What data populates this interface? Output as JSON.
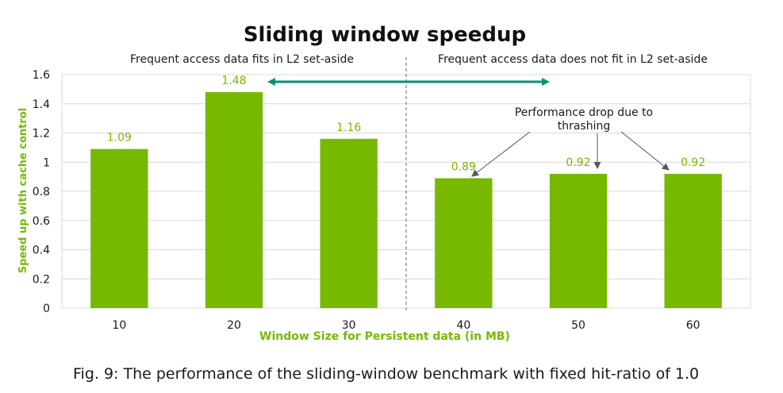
{
  "chart_data": {
    "type": "bar",
    "title": "Sliding window speedup",
    "xlabel": "Window Size for Persistent data (in MB)",
    "ylabel": "Speed up with cache control",
    "categories": [
      "10",
      "20",
      "30",
      "40",
      "50",
      "60"
    ],
    "values": [
      1.09,
      1.48,
      1.16,
      0.89,
      0.92,
      0.92
    ],
    "data_labels": [
      "1.09",
      "1.48",
      "1.16",
      "0.89",
      "0.92",
      "0.92"
    ],
    "ylim": [
      0,
      1.6
    ],
    "yticks": [
      0,
      0.2,
      0.4,
      0.6,
      0.8,
      1,
      1.2,
      1.4,
      1.6
    ],
    "ytick_labels": [
      "0",
      "0.2",
      "0.4",
      "0.6",
      "0.8",
      "1",
      "1.2",
      "1.4",
      "1.6"
    ],
    "grid": true,
    "legend": "none",
    "annotations": {
      "left_region": "Frequent access data fits in L2 set-aside",
      "right_region": "Frequent access data does not fit in L2 set-aside",
      "drop_line1": "Performance drop due to",
      "drop_line2": "thrashing"
    },
    "colors": {
      "bar": "#76b900",
      "label": "#76b900",
      "arrow": "#00936f",
      "grid": "#d9d9d9",
      "text": "#1a1a1a"
    }
  },
  "caption": "Fig. 9: The performance of the sliding-window benchmark with fixed hit-ratio of 1.0"
}
